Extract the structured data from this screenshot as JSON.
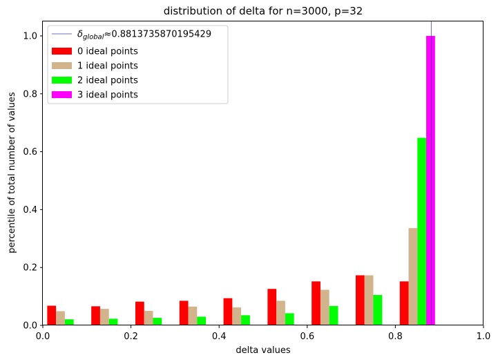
{
  "chart_data": {
    "type": "bar",
    "title": "distribution of delta for n=3000, p=32",
    "xlabel": "delta values",
    "ylabel": "percentile of total number of values",
    "xlim": [
      0.0,
      1.0
    ],
    "ylim": [
      0.0,
      1.05
    ],
    "xticks": [
      "0.0",
      "0.2",
      "0.4",
      "0.6",
      "0.8",
      "1.0"
    ],
    "yticks": [
      "0.0",
      "0.2",
      "0.4",
      "0.6",
      "0.8",
      "1.0"
    ],
    "grid": false,
    "legend_position": "top-left",
    "bin_width": 0.02,
    "reference_line": {
      "x": 0.8813735870195429,
      "label_symbol": "δ",
      "label_subscript": "global",
      "label_value": "≈0.8813735870195429",
      "color": "#3f3f9f"
    },
    "series": [
      {
        "name": "0 ideal points",
        "color": "#ff0000",
        "x": [
          0.02,
          0.12,
          0.22,
          0.32,
          0.42,
          0.52,
          0.62,
          0.72,
          0.82
        ],
        "values": [
          0.068,
          0.066,
          0.082,
          0.085,
          0.094,
          0.126,
          0.152,
          0.173,
          0.152
        ]
      },
      {
        "name": "1 ideal points",
        "color": "#d2b48c",
        "x": [
          0.04,
          0.14,
          0.24,
          0.34,
          0.44,
          0.54,
          0.64,
          0.74,
          0.84
        ],
        "values": [
          0.049,
          0.057,
          0.05,
          0.065,
          0.062,
          0.085,
          0.123,
          0.173,
          0.336
        ]
      },
      {
        "name": "2 ideal points",
        "color": "#00ff00",
        "x": [
          0.06,
          0.16,
          0.26,
          0.36,
          0.46,
          0.56,
          0.66,
          0.76,
          0.86
        ],
        "values": [
          0.021,
          0.023,
          0.026,
          0.03,
          0.035,
          0.042,
          0.067,
          0.105,
          0.648
        ]
      },
      {
        "name": "3 ideal points",
        "color": "#ff00ff",
        "x": [
          0.88
        ],
        "values": [
          1.0
        ]
      }
    ]
  }
}
